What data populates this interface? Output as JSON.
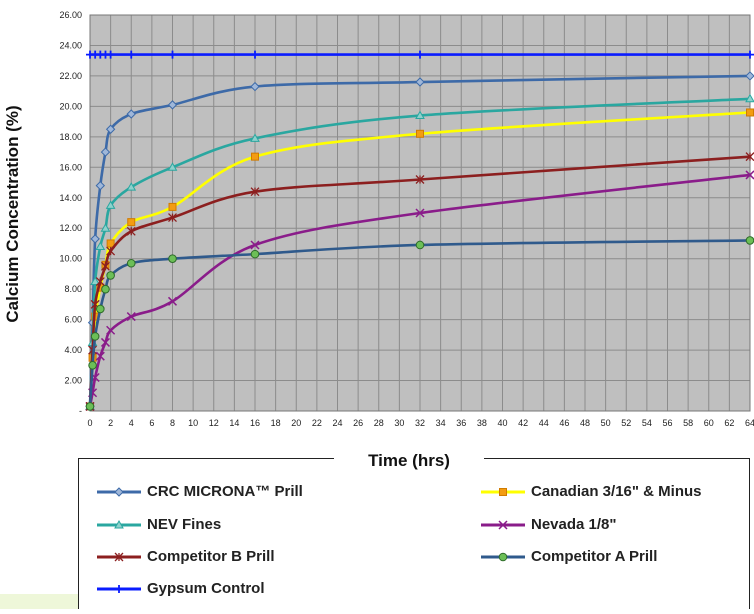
{
  "chart_data": {
    "type": "line",
    "title": "",
    "xlabel": "Time (hrs)",
    "ylabel": "Calcium Concentration (%)",
    "xlim": [
      0,
      64
    ],
    "ylim": [
      0,
      26
    ],
    "x_ticks": [
      "0",
      "2",
      "4",
      "6",
      "8",
      "10",
      "12",
      "14",
      "16",
      "18",
      "20",
      "22",
      "24",
      "26",
      "28",
      "30",
      "32",
      "34",
      "36",
      "38",
      "40",
      "42",
      "44",
      "46",
      "48",
      "50",
      "52",
      "54",
      "56",
      "58",
      "60",
      "62",
      "64"
    ],
    "y_ticks": [
      "-",
      "2.00",
      "4.00",
      "6.00",
      "8.00",
      "10.00",
      "12.00",
      "14.00",
      "16.00",
      "18.00",
      "20.00",
      "22.00",
      "24.00",
      "26.00"
    ],
    "grid": true,
    "legend_position": "bottom",
    "series": [
      {
        "name": "CRC MICRONA™ Prill",
        "color": "#3d6aa8",
        "marker": "diamond",
        "x": [
          0,
          0.25,
          0.5,
          1,
          1.5,
          2,
          4,
          8,
          16,
          32,
          64
        ],
        "y": [
          0.3,
          5.8,
          11.3,
          14.8,
          17.0,
          18.5,
          19.5,
          20.1,
          21.3,
          21.6,
          22.0
        ]
      },
      {
        "name": "Canadian 3/16\" & Minus",
        "color": "#ffff00",
        "marker": "square",
        "x": [
          0,
          0.25,
          0.5,
          1,
          1.5,
          2,
          4,
          8,
          16,
          32,
          64
        ],
        "y": [
          0.3,
          3.5,
          6.2,
          8.1,
          9.6,
          11.0,
          12.4,
          13.4,
          16.7,
          18.2,
          19.6
        ]
      },
      {
        "name": "NEV Fines",
        "color": "#2aa7a0",
        "marker": "triangle",
        "x": [
          0,
          0.25,
          0.5,
          1,
          1.5,
          2,
          4,
          8,
          16,
          32,
          64
        ],
        "y": [
          0.3,
          4.5,
          8.5,
          10.8,
          12.0,
          13.5,
          14.7,
          16.0,
          17.9,
          19.4,
          20.5
        ]
      },
      {
        "name": "Nevada 1/8\"",
        "color": "#8a1c8a",
        "marker": "x",
        "x": [
          0,
          0.25,
          0.5,
          1,
          1.5,
          2,
          4,
          8,
          16,
          32,
          64
        ],
        "y": [
          0.3,
          1.2,
          2.2,
          3.6,
          4.5,
          5.3,
          6.2,
          7.2,
          10.9,
          13.0,
          15.5
        ]
      },
      {
        "name": "Competitor B Prill",
        "color": "#8c1f1f",
        "marker": "star",
        "x": [
          0,
          0.25,
          0.5,
          1,
          1.5,
          2,
          4,
          8,
          16,
          32,
          64
        ],
        "y": [
          0.3,
          4.0,
          7.0,
          8.5,
          9.5,
          10.5,
          11.8,
          12.7,
          14.4,
          15.2,
          16.7
        ]
      },
      {
        "name": "Competitor A Prill",
        "color": "#2f5a8c",
        "marker": "circle",
        "x": [
          0,
          0.25,
          0.5,
          1,
          1.5,
          2,
          4,
          8,
          16,
          32,
          64
        ],
        "y": [
          0.3,
          3.0,
          4.9,
          6.7,
          8.0,
          8.9,
          9.7,
          10.0,
          10.3,
          10.9,
          11.2
        ]
      },
      {
        "name": "Gypsum Control",
        "color": "#0a1cff",
        "marker": "plus",
        "x": [
          0,
          0.5,
          1,
          1.5,
          2,
          4,
          8,
          16,
          32,
          64
        ],
        "y": [
          23.4,
          23.4,
          23.4,
          23.4,
          23.4,
          23.4,
          23.4,
          23.4,
          23.4,
          23.4
        ]
      }
    ]
  },
  "legend": {
    "items": [
      {
        "label": "CRC MICRONA™ Prill",
        "series": 0
      },
      {
        "label": "Canadian 3/16\" & Minus",
        "series": 1
      },
      {
        "label": "NEV Fines",
        "series": 2
      },
      {
        "label": "Nevada 1/8\"",
        "series": 3
      },
      {
        "label": "Competitor B Prill",
        "series": 4
      },
      {
        "label": "Competitor A Prill",
        "series": 5
      },
      {
        "label": "Gypsum Control",
        "series": 6
      }
    ]
  }
}
